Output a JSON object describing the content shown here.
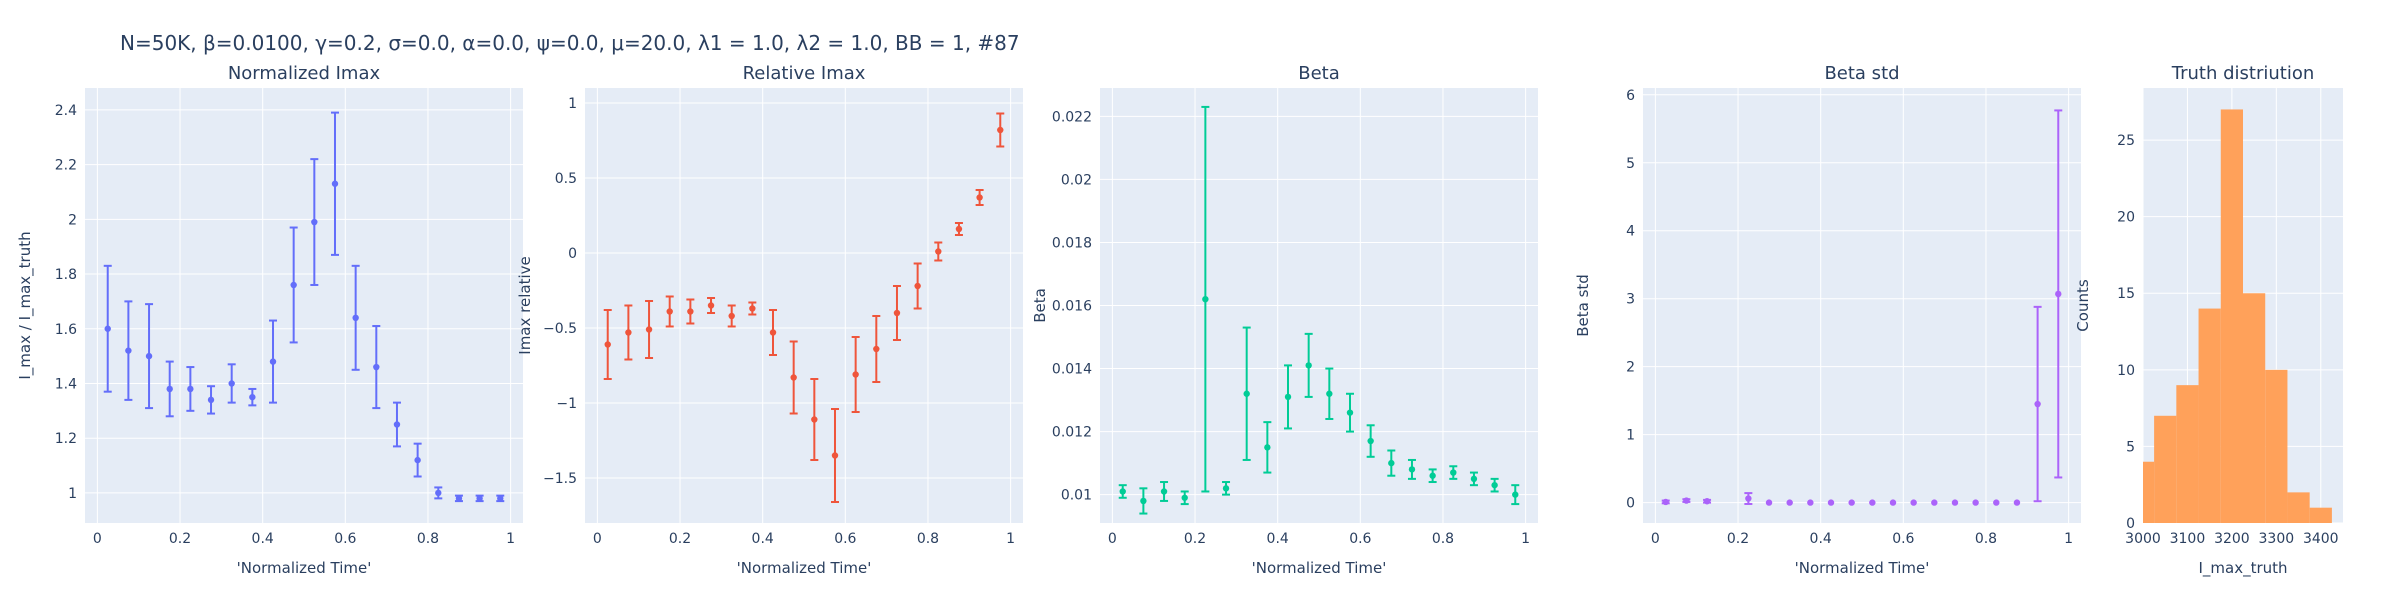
{
  "figure": {
    "title": "N=50K, β=0.0100, γ=0.2, σ=0.0,  α=0.0, ψ=0.0, μ=20.0, λ1 = 1.0, λ2 = 1.0, BB = 1, #87"
  },
  "style": {
    "plot_bg": "#e5ecf6",
    "grid": "#ffffff",
    "text": "#2a3f5f"
  },
  "chart_data": [
    {
      "type": "scatter",
      "title": "Normalized Imax",
      "xlabel": "'Normalized Time'",
      "ylabel": "I_max / I_max_truth",
      "color": "#636efa",
      "xlim": [
        -0.03,
        1.03
      ],
      "ylim": [
        0.89,
        2.48
      ],
      "xticks": [
        0,
        0.2,
        0.4,
        0.6,
        0.8,
        1
      ],
      "xtick_labels": [
        "0",
        "0.2",
        "0.4",
        "0.6",
        "0.8",
        "1"
      ],
      "yticks": [
        1,
        1.2,
        1.4,
        1.6,
        1.8,
        2,
        2.2,
        2.4
      ],
      "ytick_labels": [
        "1",
        "1.2",
        "1.4",
        "1.6",
        "1.8",
        "2",
        "2.2",
        "2.4"
      ],
      "x": [
        0.025,
        0.075,
        0.125,
        0.175,
        0.225,
        0.275,
        0.325,
        0.375,
        0.425,
        0.475,
        0.525,
        0.575,
        0.625,
        0.675,
        0.725,
        0.775,
        0.825,
        0.875,
        0.925,
        0.975
      ],
      "y": [
        1.6,
        1.52,
        1.5,
        1.38,
        1.38,
        1.34,
        1.4,
        1.35,
        1.48,
        1.76,
        1.99,
        2.13,
        1.64,
        1.46,
        1.25,
        1.12,
        1.0,
        0.98,
        0.98,
        0.98
      ],
      "err": [
        0.23,
        0.18,
        0.19,
        0.1,
        0.08,
        0.05,
        0.07,
        0.03,
        0.15,
        0.21,
        0.23,
        0.26,
        0.19,
        0.15,
        0.08,
        0.06,
        0.02,
        0.01,
        0.01,
        0.01
      ]
    },
    {
      "type": "scatter",
      "title": "Relative Imax",
      "xlabel": "'Normalized Time'",
      "ylabel": "Imax relative",
      "color": "#ef553b",
      "xlim": [
        -0.03,
        1.03
      ],
      "ylim": [
        -1.8,
        1.1
      ],
      "xticks": [
        0,
        0.2,
        0.4,
        0.6,
        0.8,
        1
      ],
      "xtick_labels": [
        "0",
        "0.2",
        "0.4",
        "0.6",
        "0.8",
        "1"
      ],
      "yticks": [
        -1.5,
        -1,
        -0.5,
        0,
        0.5,
        1
      ],
      "ytick_labels": [
        "−1.5",
        "−1",
        "−0.5",
        "0",
        "0.5",
        "1"
      ],
      "x": [
        0.025,
        0.075,
        0.125,
        0.175,
        0.225,
        0.275,
        0.325,
        0.375,
        0.425,
        0.475,
        0.525,
        0.575,
        0.625,
        0.675,
        0.725,
        0.775,
        0.825,
        0.875,
        0.925,
        0.975
      ],
      "y": [
        -0.61,
        -0.53,
        -0.51,
        -0.39,
        -0.39,
        -0.35,
        -0.42,
        -0.37,
        -0.53,
        -0.83,
        -1.11,
        -1.35,
        -0.81,
        -0.64,
        -0.4,
        -0.22,
        0.01,
        0.16,
        0.37,
        0.82
      ],
      "err": [
        0.23,
        0.18,
        0.19,
        0.1,
        0.08,
        0.05,
        0.07,
        0.04,
        0.15,
        0.24,
        0.27,
        0.31,
        0.25,
        0.22,
        0.18,
        0.15,
        0.06,
        0.04,
        0.05,
        0.11
      ]
    },
    {
      "type": "scatter",
      "title": "Beta",
      "xlabel": "'Normalized Time'",
      "ylabel": "Beta",
      "color": "#00cc96",
      "xlim": [
        -0.03,
        1.03
      ],
      "ylim": [
        0.0091,
        0.0229
      ],
      "xticks": [
        0,
        0.2,
        0.4,
        0.6,
        0.8,
        1
      ],
      "xtick_labels": [
        "0",
        "0.2",
        "0.4",
        "0.6",
        "0.8",
        "1"
      ],
      "yticks": [
        0.01,
        0.012,
        0.014,
        0.016,
        0.018,
        0.02,
        0.022
      ],
      "ytick_labels": [
        "0.01",
        "0.012",
        "0.014",
        "0.016",
        "0.018",
        "0.02",
        "0.022"
      ],
      "x": [
        0.025,
        0.075,
        0.125,
        0.175,
        0.225,
        0.275,
        0.325,
        0.375,
        0.425,
        0.475,
        0.525,
        0.575,
        0.625,
        0.675,
        0.725,
        0.775,
        0.825,
        0.875,
        0.925,
        0.975
      ],
      "y": [
        0.0101,
        0.0098,
        0.0101,
        0.0099,
        0.0162,
        0.0102,
        0.0132,
        0.0115,
        0.0131,
        0.0141,
        0.0132,
        0.0126,
        0.0117,
        0.011,
        0.0108,
        0.0106,
        0.0107,
        0.0105,
        0.0103,
        0.01
      ],
      "err": [
        0.0002,
        0.0004,
        0.0003,
        0.0002,
        0.0061,
        0.0002,
        0.0021,
        0.0008,
        0.001,
        0.001,
        0.0008,
        0.0006,
        0.0005,
        0.0004,
        0.0003,
        0.0002,
        0.0002,
        0.0002,
        0.0002,
        0.0003
      ]
    },
    {
      "type": "scatter",
      "title": "Beta std",
      "xlabel": "'Normalized Time'",
      "ylabel": "Beta std",
      "color": "#ab63fa",
      "xlim": [
        -0.03,
        1.03
      ],
      "ylim": [
        -0.3,
        6.1
      ],
      "xticks": [
        0,
        0.2,
        0.4,
        0.6,
        0.8,
        1
      ],
      "xtick_labels": [
        "0",
        "0.2",
        "0.4",
        "0.6",
        "0.8",
        "1"
      ],
      "yticks": [
        0,
        1,
        2,
        3,
        4,
        5,
        6
      ],
      "ytick_labels": [
        "0",
        "1",
        "2",
        "3",
        "4",
        "5",
        "6"
      ],
      "x": [
        0.025,
        0.075,
        0.125,
        0.225,
        0.275,
        0.325,
        0.375,
        0.425,
        0.475,
        0.525,
        0.575,
        0.625,
        0.675,
        0.725,
        0.775,
        0.825,
        0.875,
        0.925,
        0.975
      ],
      "y": [
        0.01,
        0.03,
        0.02,
        0.06,
        0.0,
        0.0,
        0.0,
        0.0,
        0.0,
        0.0,
        0.0,
        0.0,
        0.0,
        0.0,
        0.0,
        0.0,
        0.0,
        1.45,
        3.07
      ],
      "err": [
        0.02,
        0.02,
        0.02,
        0.08,
        0.0,
        0.0,
        0.0,
        0.0,
        0.0,
        0.0,
        0.0,
        0.0,
        0.0,
        0.0,
        0.0,
        0.0,
        0.0,
        1.43,
        2.7
      ]
    },
    {
      "type": "bar",
      "title": "Truth distriution",
      "xlabel": "I_max_truth",
      "ylabel": "Counts",
      "color": "#ffa15a",
      "xlim": [
        3000,
        3450
      ],
      "ylim": [
        0,
        28.4
      ],
      "xticks": [
        3000,
        3100,
        3200,
        3300,
        3400
      ],
      "xtick_labels": [
        "3000",
        "3100",
        "3200",
        "3300",
        "3400"
      ],
      "yticks": [
        0,
        5,
        10,
        15,
        20,
        25
      ],
      "ytick_labels": [
        "0",
        "5",
        "10",
        "15",
        "20",
        "25"
      ],
      "bins": [
        3000,
        3025,
        3075,
        3125,
        3175,
        3225,
        3275,
        3325,
        3375,
        3425,
        3450
      ],
      "counts": [
        4,
        7,
        9,
        14,
        27,
        15,
        10,
        2,
        1,
        0
      ]
    }
  ]
}
